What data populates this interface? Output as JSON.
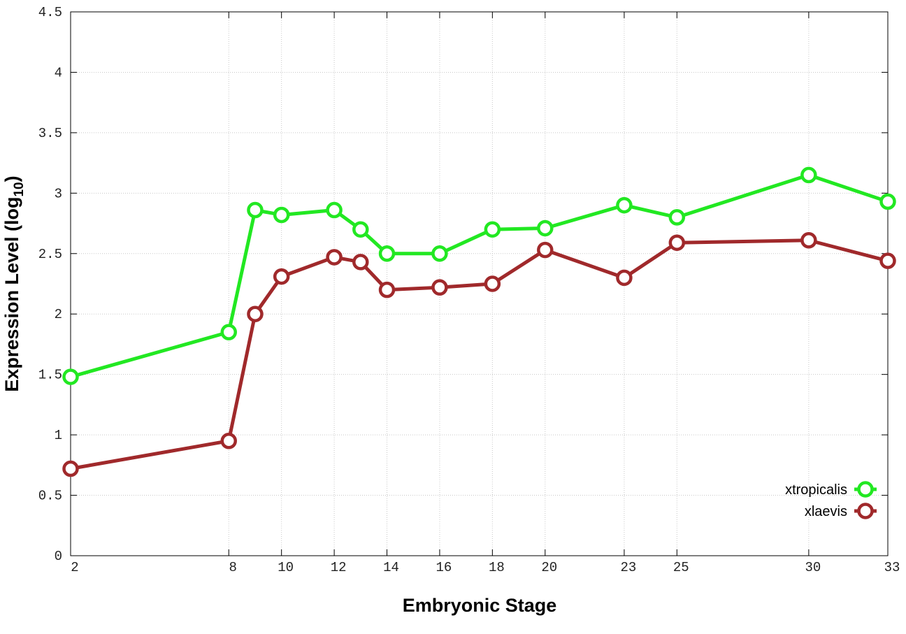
{
  "chart_data": {
    "type": "line",
    "x_label": "Embryonic Stage",
    "y_label": {
      "text": "Expression Level (log",
      "subscript": "10",
      "suffix": ")"
    },
    "x": [
      2,
      8,
      9,
      10,
      12,
      13,
      14,
      16,
      18,
      20,
      23,
      25,
      30,
      33
    ],
    "series": [
      {
        "name": "xtropicalis",
        "color": "#22e822",
        "values": [
          1.48,
          1.85,
          2.86,
          2.82,
          2.86,
          2.7,
          2.5,
          2.5,
          2.7,
          2.71,
          2.9,
          2.8,
          3.15,
          2.93
        ]
      },
      {
        "name": "xlaevis",
        "color": "#a0292b",
        "values": [
          0.72,
          0.95,
          2.0,
          2.31,
          2.47,
          2.43,
          2.2,
          2.22,
          2.25,
          2.53,
          2.3,
          2.59,
          2.61,
          2.44
        ]
      }
    ],
    "xlim": [
      2,
      33
    ],
    "xticks": [
      2,
      8,
      10,
      12,
      14,
      16,
      18,
      20,
      23,
      25,
      30,
      33
    ],
    "ylim": [
      0,
      4.5
    ],
    "yticks": [
      0,
      0.5,
      1,
      1.5,
      2,
      2.5,
      3,
      3.5,
      4,
      4.5
    ],
    "grid": true,
    "legend": "lower right"
  }
}
